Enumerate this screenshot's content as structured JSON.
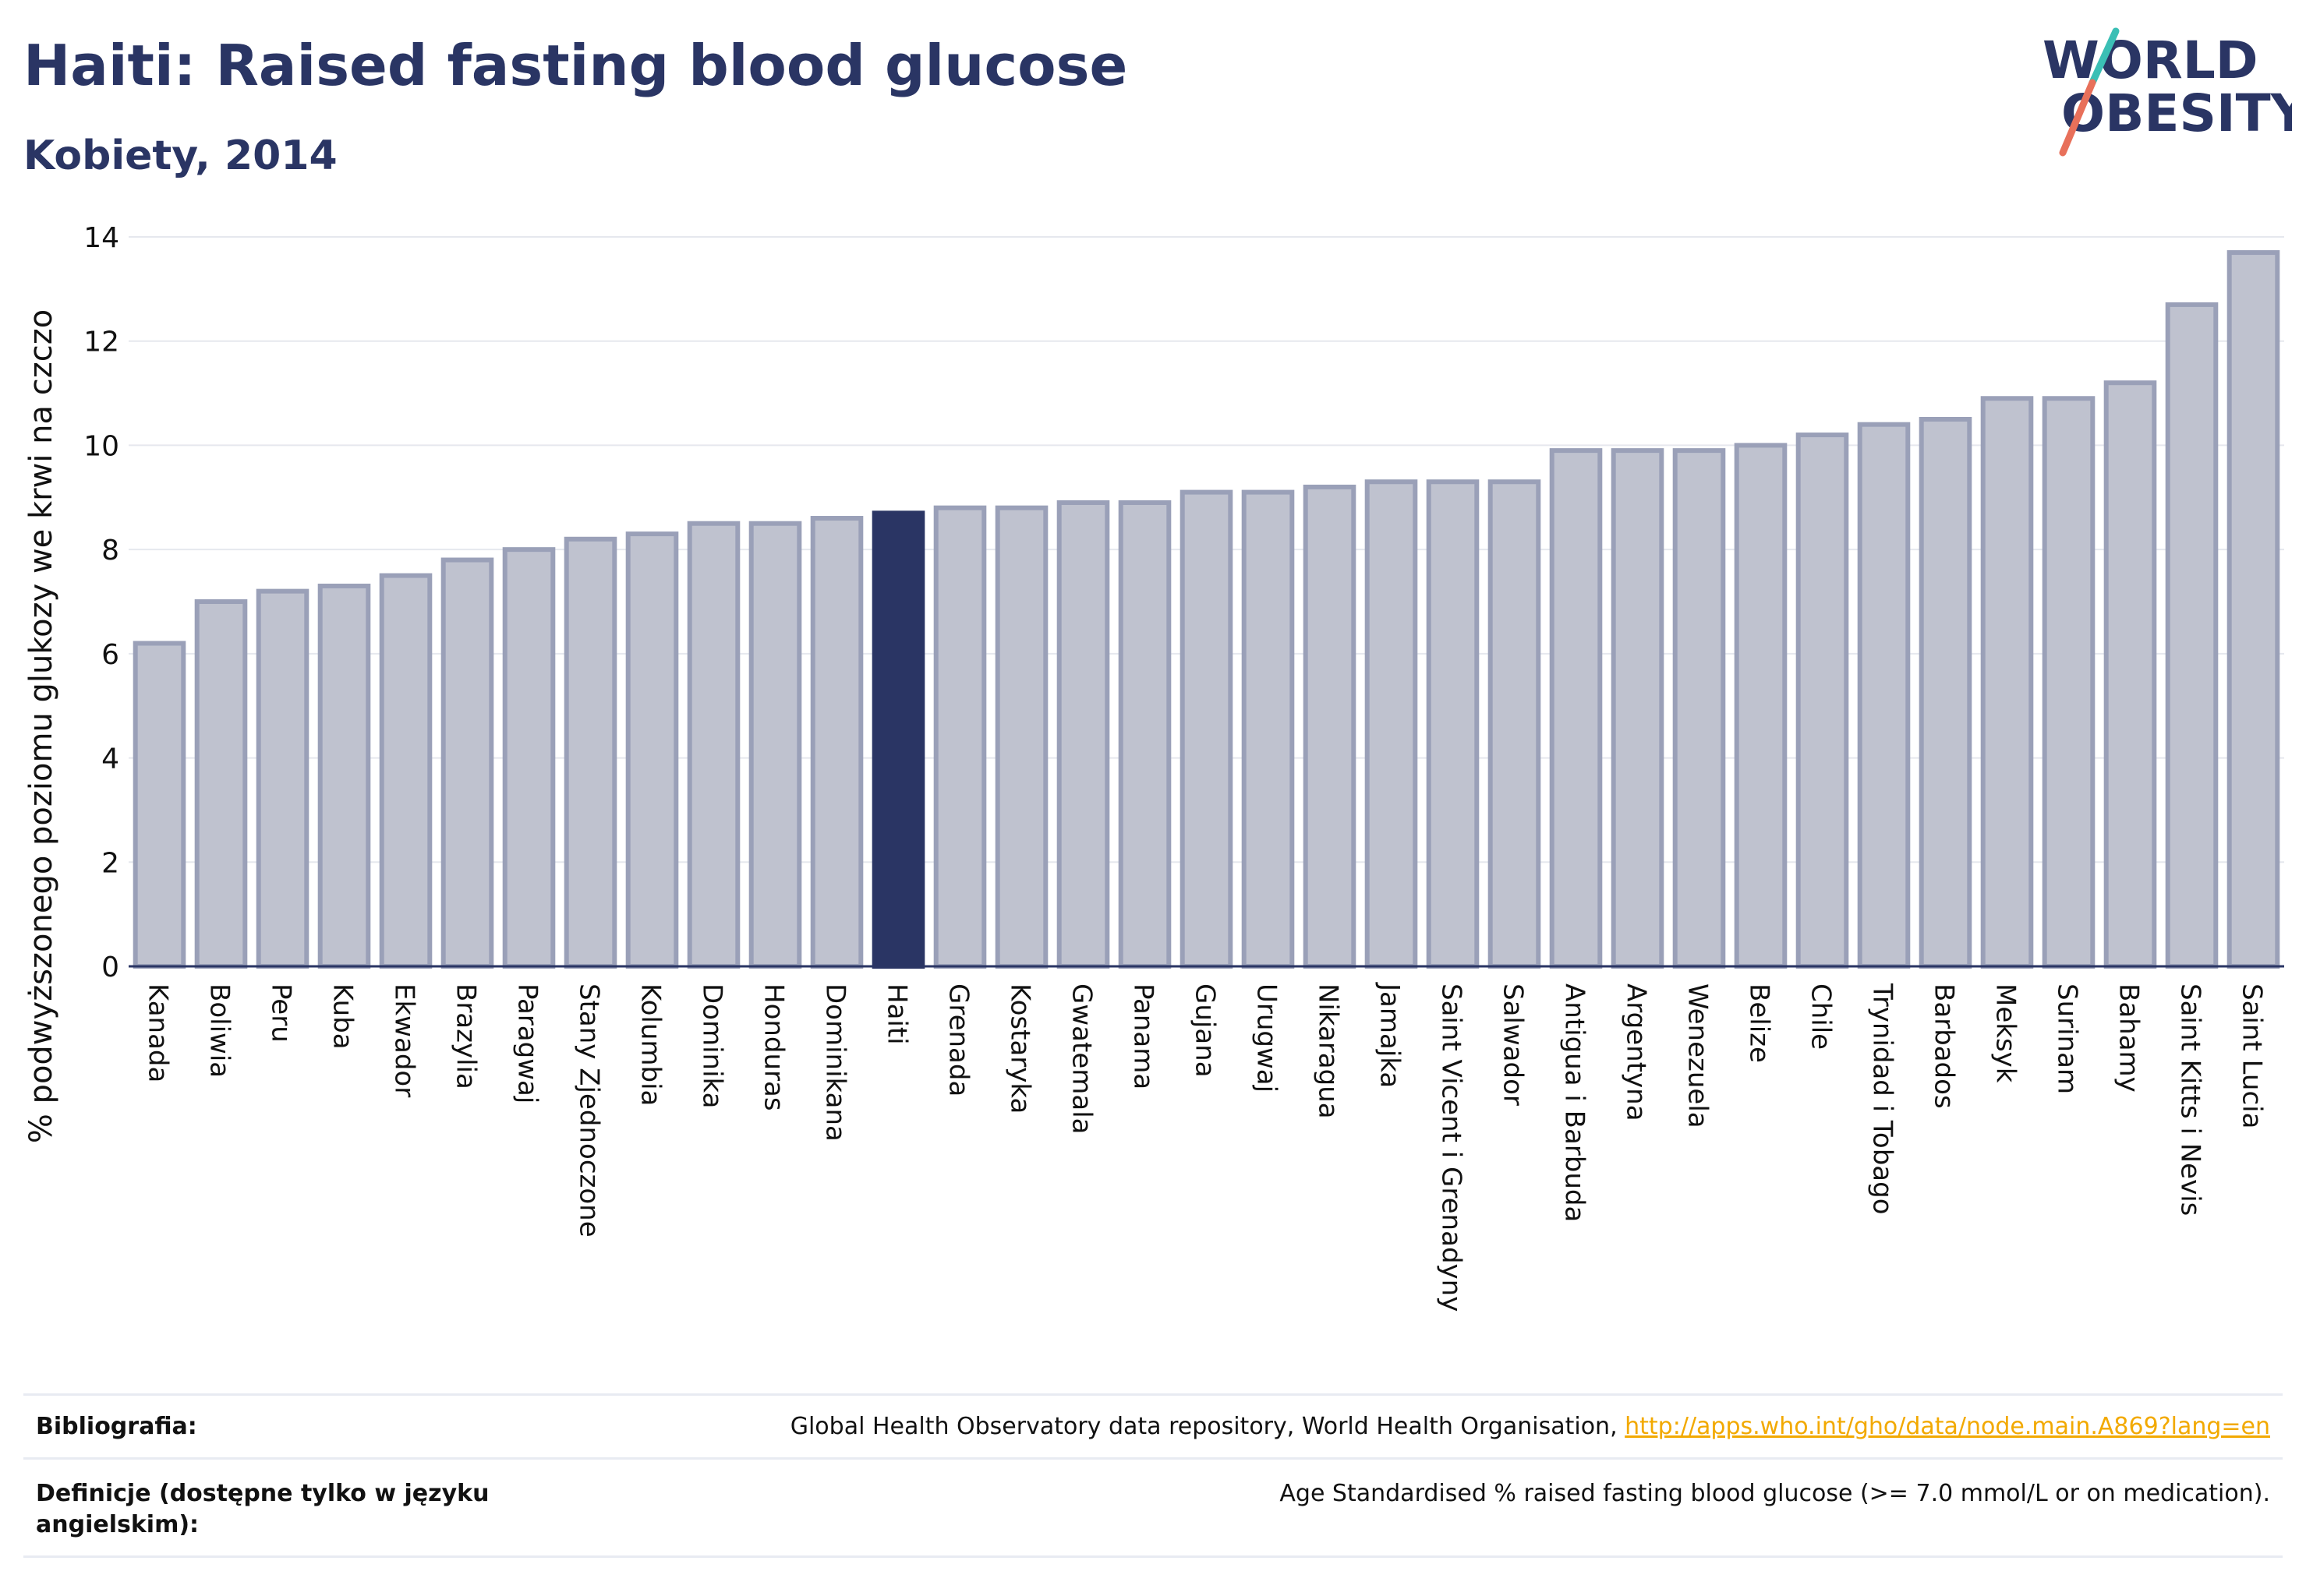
{
  "header": {
    "title": "Haiti: Raised fasting blood glucose",
    "subtitle": "Kobiety, 2014"
  },
  "logo": {
    "line1": "WORLD",
    "line2": "OBESITY",
    "colors": {
      "text": "#2a3564",
      "teal": "#3bbfb5",
      "coral": "#e8705a"
    }
  },
  "chart_data": {
    "type": "bar",
    "title": "",
    "xlabel": "",
    "ylabel": "% podwyższonego poziomu glukozy we krwi na czczo",
    "ylim": [
      0,
      14
    ],
    "yticks": [
      0,
      2,
      4,
      6,
      8,
      10,
      12,
      14
    ],
    "grid": true,
    "highlight": "Haiti",
    "colors": {
      "bar": "#bfc2cf",
      "bar_border": "#9aa0b8",
      "highlight": "#2a3564"
    },
    "categories": [
      "Kanada",
      "Boliwia",
      "Peru",
      "Kuba",
      "Ekwador",
      "Brazylia",
      "Paragwaj",
      "Stany Zjednoczone",
      "Kolumbia",
      "Dominika",
      "Honduras",
      "Dominikana",
      "Haiti",
      "Grenada",
      "Kostaryka",
      "Gwatemala",
      "Panama",
      "Gujana",
      "Urugwaj",
      "Nikaragua",
      "Jamajka",
      "Saint Vicent i Grenadyny",
      "Salwador",
      "Antigua i Barbuda",
      "Argentyna",
      "Wenezuela",
      "Belize",
      "Chile",
      "Trynidad i Tobago",
      "Barbados",
      "Meksyk",
      "Surinam",
      "Bahamy",
      "Saint Kitts i Nevis",
      "Saint Lucia"
    ],
    "values": [
      6.2,
      7.0,
      7.2,
      7.3,
      7.5,
      7.8,
      8.0,
      8.2,
      8.3,
      8.5,
      8.5,
      8.6,
      8.7,
      8.8,
      8.8,
      8.9,
      8.9,
      9.1,
      9.1,
      9.2,
      9.3,
      9.3,
      9.3,
      9.9,
      9.9,
      9.9,
      10.0,
      10.2,
      10.4,
      10.5,
      10.9,
      10.9,
      11.2,
      12.7,
      13.7
    ]
  },
  "footer": {
    "bibliography_label": "Bibliografia:",
    "bibliography_text": "Global Health Observatory data repository, World Health Organisation, ",
    "bibliography_link": "http://apps.who.int/gho/data/node.main.A869?lang=en",
    "definitions_label": "Definicje (dostępne tylko w języku angielskim):",
    "definitions_text": "Age Standardised % raised fasting blood glucose (>= 7.0 mmol/L or on medication)."
  }
}
